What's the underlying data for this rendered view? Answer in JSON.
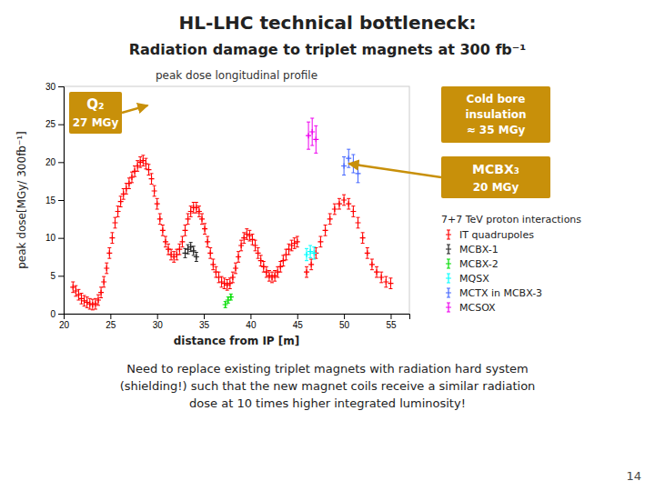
{
  "chart_data": {
    "type": "scatter",
    "title": "HL-LHC technical bottleneck:",
    "subtitle": "Radiation damage to triplet magnets  at 300 fb⁻¹",
    "x_label": "distance from IP [m]",
    "y_label": "peak dose[MGy/ 300fb⁻¹]",
    "xlim": [
      20,
      57
    ],
    "ylim": [
      0,
      30
    ],
    "xticks": [
      20,
      25,
      30,
      35,
      40,
      45,
      50,
      55
    ],
    "yticks": [
      0,
      5,
      10,
      15,
      20,
      25,
      30
    ],
    "marker": "plus",
    "series": [
      {
        "name": "IT quadrupoles",
        "color": "#ff0000",
        "x": [
          21.0,
          21.3,
          21.6,
          21.9,
          22.2,
          22.5,
          22.8,
          23.1,
          23.4,
          23.7,
          24.0,
          24.3,
          24.6,
          24.9,
          25.2,
          25.5,
          25.8,
          26.1,
          26.4,
          26.7,
          27.0,
          27.3,
          27.6,
          27.9,
          28.2,
          28.5,
          28.8,
          29.1,
          29.4,
          29.7,
          30.0,
          30.3,
          30.6,
          30.9,
          31.2,
          31.5,
          31.8,
          32.1,
          32.4,
          32.7,
          33.0,
          33.3,
          33.6,
          33.9,
          34.2,
          34.5,
          34.8,
          35.1,
          35.4,
          35.7,
          36.0,
          36.3,
          36.6,
          36.9,
          37.2,
          37.5,
          37.8,
          38.1,
          38.4,
          38.7,
          39.0,
          39.3,
          39.6,
          39.9,
          40.2,
          40.5,
          40.8,
          41.1,
          41.4,
          41.7,
          42.0,
          42.3,
          42.6,
          42.9,
          43.2,
          43.5,
          43.8,
          44.1,
          44.4,
          44.7,
          45.0,
          46.0,
          46.5,
          47.0,
          47.5,
          48.0,
          48.5,
          49.0,
          49.5,
          50.0,
          50.5,
          51.0,
          51.5,
          52.0,
          52.5,
          53.0,
          53.5,
          54.0,
          54.5,
          55.0
        ],
        "values": [
          3.5,
          3.0,
          2.5,
          2.0,
          1.7,
          1.5,
          1.3,
          1.2,
          1.3,
          1.8,
          2.8,
          4.2,
          6.0,
          8.0,
          10.0,
          12.0,
          13.5,
          14.8,
          15.8,
          16.5,
          17.2,
          18.0,
          18.8,
          19.5,
          20.0,
          20.2,
          19.8,
          19.0,
          17.8,
          16.2,
          14.5,
          12.5,
          11.0,
          9.5,
          8.5,
          7.8,
          7.5,
          7.8,
          8.5,
          9.5,
          11.0,
          12.5,
          13.5,
          14.0,
          14.0,
          13.5,
          12.5,
          11.2,
          9.5,
          8.0,
          6.5,
          5.5,
          4.8,
          4.2,
          4.0,
          3.8,
          4.0,
          4.8,
          6.0,
          7.5,
          9.0,
          10.0,
          10.5,
          10.3,
          9.8,
          9.0,
          8.0,
          7.0,
          6.2,
          5.5,
          5.0,
          4.8,
          5.0,
          5.5,
          6.2,
          7.0,
          7.8,
          8.5,
          9.0,
          9.3,
          9.5,
          5.5,
          6.5,
          8.0,
          9.5,
          11.0,
          12.5,
          13.8,
          14.5,
          15.0,
          14.5,
          13.5,
          12.0,
          10.0,
          8.0,
          6.5,
          5.5,
          4.8,
          4.2,
          4.0
        ],
        "error": 0.7
      },
      {
        "name": "MCBX-1",
        "color": "#222222",
        "x": [
          33.0,
          33.3,
          33.6,
          33.9,
          34.2
        ],
        "values": [
          8.0,
          8.5,
          8.8,
          8.3,
          7.5
        ],
        "error": 0.6
      },
      {
        "name": "MCBX-2",
        "color": "#00dd00",
        "x": [
          37.3,
          37.6,
          37.9
        ],
        "values": [
          1.2,
          1.8,
          2.2
        ],
        "error": 0.4
      },
      {
        "name": "MQSX",
        "color": "#00ffff",
        "x": [
          46.0,
          46.4,
          46.8
        ],
        "values": [
          7.8,
          8.2,
          8.0
        ],
        "error": 0.8
      },
      {
        "name": "MCTX in MCBX-3",
        "color": "#4466ff",
        "x": [
          50.0,
          50.5,
          51.0,
          51.5
        ],
        "values": [
          19.5,
          20.5,
          19.8,
          18.5
        ],
        "error": 1.2
      },
      {
        "name": "MCSOX",
        "color": "#ee00ee",
        "x": [
          46.2,
          46.6,
          47.0
        ],
        "values": [
          23.5,
          24.0,
          23.0
        ],
        "error": 1.8
      }
    ],
    "annotations": [
      {
        "text": "peak dose longitudinal profile"
      },
      {
        "text": "7+7 TeV proton interactions"
      },
      {
        "lines": [
          "Q₂",
          "27 MGy"
        ],
        "x": 29.0,
        "y": 27.5
      },
      {
        "lines": [
          "Cold bore",
          "insulation",
          "≈ 35 MGy"
        ]
      },
      {
        "lines": [
          "MCBX₃",
          "20 MGy"
        ],
        "x": 50.5,
        "y": 19.8
      },
      {
        "lines": [
          "Need to replace existing triplet magnets with radiation hard system",
          "(shielding!) such that the new magnet coils receive a similar radiation",
          "dose at 10 times higher integrated luminosity!"
        ]
      },
      {
        "text": "14"
      }
    ]
  }
}
